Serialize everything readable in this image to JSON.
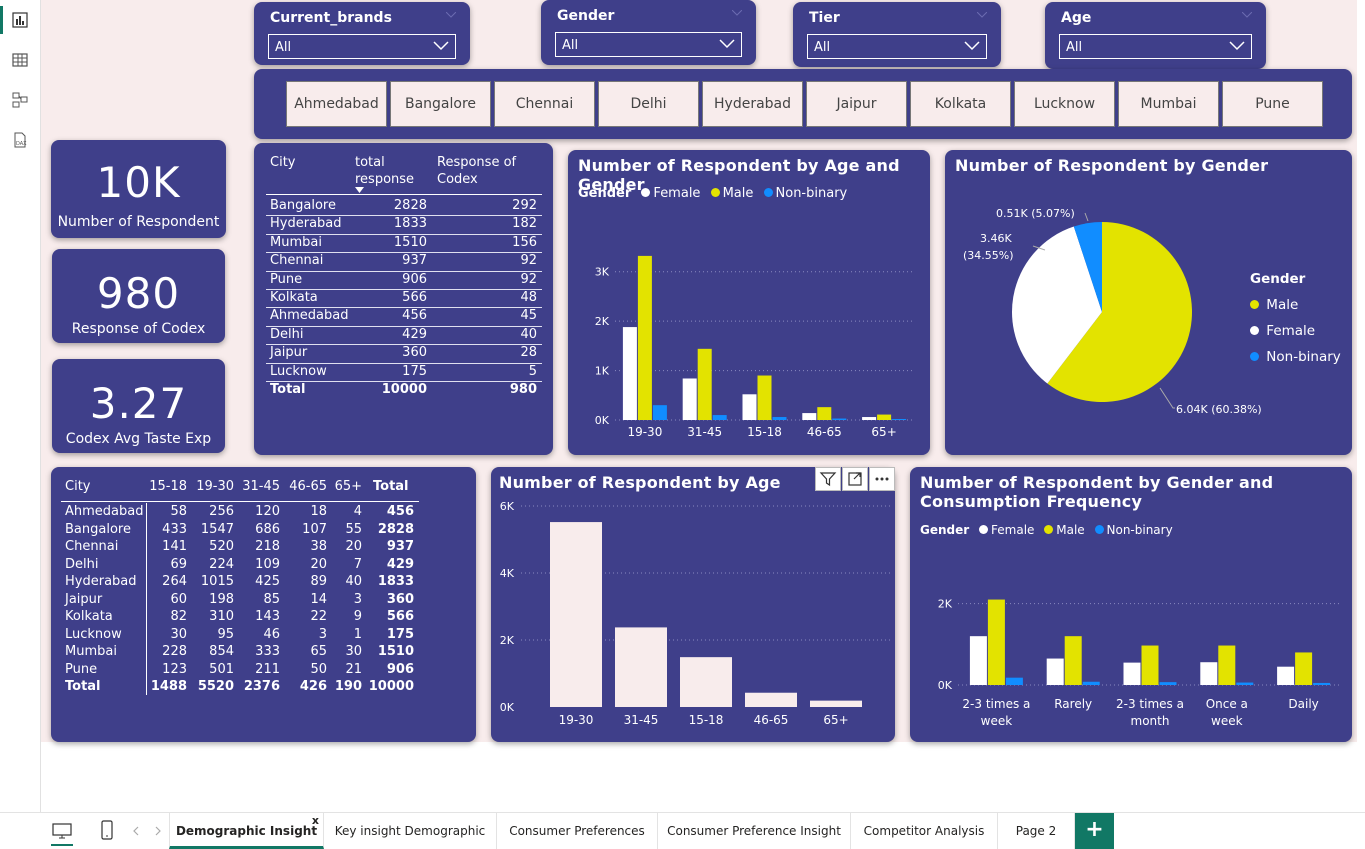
{
  "slicers": [
    {
      "title": "Current_brands",
      "value": "All"
    },
    {
      "title": "Gender",
      "value": "All"
    },
    {
      "title": "Tier",
      "value": "All"
    },
    {
      "title": "Age",
      "value": "All"
    }
  ],
  "city_buttons": [
    "Ahmedabad",
    "Bangalore",
    "Chennai",
    "Delhi",
    "Hyderabad",
    "Jaipur",
    "Kolkata",
    "Lucknow",
    "Mumbai",
    "Pune"
  ],
  "kpis": [
    {
      "value": "10K",
      "label": "Number of Respondent"
    },
    {
      "value": "980",
      "label": "Response of Codex"
    },
    {
      "value": "3.27",
      "label": "Codex Avg Taste Exp"
    }
  ],
  "city_table": {
    "headers": [
      "City",
      "total response",
      "Response of Codex"
    ],
    "rows": [
      [
        "Bangalore",
        "2828",
        "292"
      ],
      [
        "Hyderabad",
        "1833",
        "182"
      ],
      [
        "Mumbai",
        "1510",
        "156"
      ],
      [
        "Chennai",
        "937",
        "92"
      ],
      [
        "Pune",
        "906",
        "92"
      ],
      [
        "Kolkata",
        "566",
        "48"
      ],
      [
        "Ahmedabad",
        "456",
        "45"
      ],
      [
        "Delhi",
        "429",
        "40"
      ],
      [
        "Jaipur",
        "360",
        "28"
      ],
      [
        "Lucknow",
        "175",
        "5"
      ]
    ],
    "total": [
      "Total",
      "10000",
      "980"
    ]
  },
  "matrix_table": {
    "headers": [
      "City",
      "15-18",
      "19-30",
      "31-45",
      "46-65",
      "65+",
      "Total"
    ],
    "rows": [
      [
        "Ahmedabad",
        "58",
        "256",
        "120",
        "18",
        "4",
        "456"
      ],
      [
        "Bangalore",
        "433",
        "1547",
        "686",
        "107",
        "55",
        "2828"
      ],
      [
        "Chennai",
        "141",
        "520",
        "218",
        "38",
        "20",
        "937"
      ],
      [
        "Delhi",
        "69",
        "224",
        "109",
        "20",
        "7",
        "429"
      ],
      [
        "Hyderabad",
        "264",
        "1015",
        "425",
        "89",
        "40",
        "1833"
      ],
      [
        "Jaipur",
        "60",
        "198",
        "85",
        "14",
        "3",
        "360"
      ],
      [
        "Kolkata",
        "82",
        "310",
        "143",
        "22",
        "9",
        "566"
      ],
      [
        "Lucknow",
        "30",
        "95",
        "46",
        "3",
        "1",
        "175"
      ],
      [
        "Mumbai",
        "228",
        "854",
        "333",
        "65",
        "30",
        "1510"
      ],
      [
        "Pune",
        "123",
        "501",
        "211",
        "50",
        "21",
        "906"
      ]
    ],
    "total": [
      "Total",
      "1488",
      "5520",
      "2376",
      "426",
      "190",
      "10000"
    ]
  },
  "colors": {
    "female": "#ffffff",
    "male": "#e3e300",
    "nonbinary": "#118dff",
    "panel": "#3f3f8a",
    "age_bar": "#f8ecec"
  },
  "chart_data": [
    {
      "type": "bar",
      "title": "Number of Respondent by Age and Gender",
      "legend_title": "Gender",
      "categories": [
        "19-30",
        "31-45",
        "15-18",
        "46-65",
        "65+"
      ],
      "series": [
        {
          "name": "Female",
          "values": [
            1880,
            840,
            520,
            140,
            60
          ]
        },
        {
          "name": "Male",
          "values": [
            3320,
            1440,
            900,
            260,
            110
          ]
        },
        {
          "name": "Non-binary",
          "values": [
            300,
            100,
            60,
            30,
            20
          ]
        }
      ],
      "yticks": [
        "0K",
        "1K",
        "2K",
        "3K"
      ],
      "ylim": [
        0,
        3500
      ],
      "legend_position": "top-left"
    },
    {
      "type": "pie",
      "title": "Number of Respondent by Gender",
      "legend_title": "Gender",
      "slices": [
        {
          "name": "Male",
          "value": 60.38,
          "label": "6.04K (60.38%)"
        },
        {
          "name": "Female",
          "value": 34.55,
          "label": "3.46K (34.55%)"
        },
        {
          "name": "Non-binary",
          "value": 5.07,
          "label": "0.51K (5.07%)"
        }
      ],
      "legend_position": "right"
    },
    {
      "type": "bar",
      "title": "Number of Respondent by Age",
      "categories": [
        "19-30",
        "31-45",
        "15-18",
        "46-65",
        "65+"
      ],
      "values": [
        5520,
        2376,
        1488,
        426,
        190
      ],
      "yticks": [
        "0K",
        "2K",
        "4K",
        "6K"
      ],
      "ylim": [
        0,
        6000
      ]
    },
    {
      "type": "bar",
      "title": "Number of Respondent by Gender and Consumption Frequency",
      "legend_title": "Gender",
      "categories": [
        "2-3 times a week",
        "Rarely",
        "2-3 times a month",
        "Once a week",
        "Daily"
      ],
      "series": [
        {
          "name": "Female",
          "values": [
            1200,
            650,
            550,
            560,
            450
          ]
        },
        {
          "name": "Male",
          "values": [
            2100,
            1200,
            970,
            970,
            800
          ]
        },
        {
          "name": "Non-binary",
          "values": [
            180,
            80,
            70,
            60,
            50
          ]
        }
      ],
      "yticks": [
        "0K",
        "2K"
      ],
      "ylim": [
        0,
        2900
      ],
      "legend_position": "top-left"
    }
  ],
  "tabs": [
    "Demographic Insight",
    "Key insight Demographic",
    "Consumer Preferences",
    "Consumer Preference Insight",
    "Competitor Analysis",
    "Page 2"
  ],
  "tab_close": "x",
  "add_tab": "+"
}
